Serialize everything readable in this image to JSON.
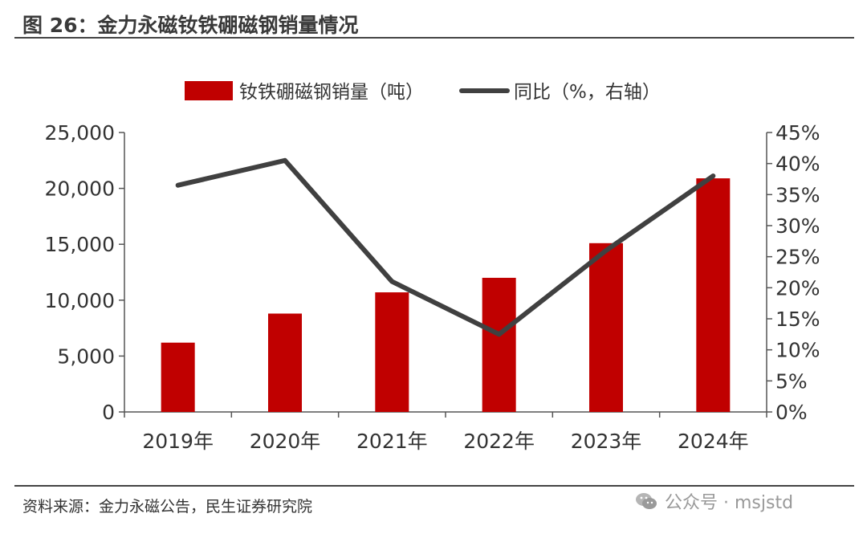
{
  "header": {
    "title": "图 26：金力永磁钕铁硼磁钢销量情况"
  },
  "footer": {
    "source": "资料来源：金力永磁公告，民生证券研究院",
    "watermark": "公众号 · msjstd",
    "watermark_icon": "wechat-icon"
  },
  "colors": {
    "bar": "#c00000",
    "line": "#404040",
    "axis": "#555555"
  },
  "chart_data": {
    "type": "bar",
    "categories": [
      "2019年",
      "2020年",
      "2021年",
      "2022年",
      "2023年",
      "2024年"
    ],
    "series": [
      {
        "name": "钕铁硼磁钢销量（吨）",
        "type": "bar",
        "axis": "left",
        "values": [
          6200,
          8800,
          10700,
          12000,
          15100,
          20900
        ]
      },
      {
        "name": "同比（%，右轴）",
        "type": "line",
        "axis": "right",
        "values": [
          36.5,
          40.5,
          21.0,
          12.5,
          26.0,
          38.0
        ]
      }
    ],
    "ylim_left": [
      0,
      25000
    ],
    "yticks_left": [
      "0",
      "5,000",
      "10,000",
      "15,000",
      "20,000",
      "25,000"
    ],
    "ylim_right": [
      0,
      45
    ],
    "yticks_right": [
      "0%",
      "5%",
      "10%",
      "15%",
      "20%",
      "25%",
      "30%",
      "35%",
      "40%",
      "45%"
    ],
    "legend_position": "top-center",
    "grid": false
  }
}
